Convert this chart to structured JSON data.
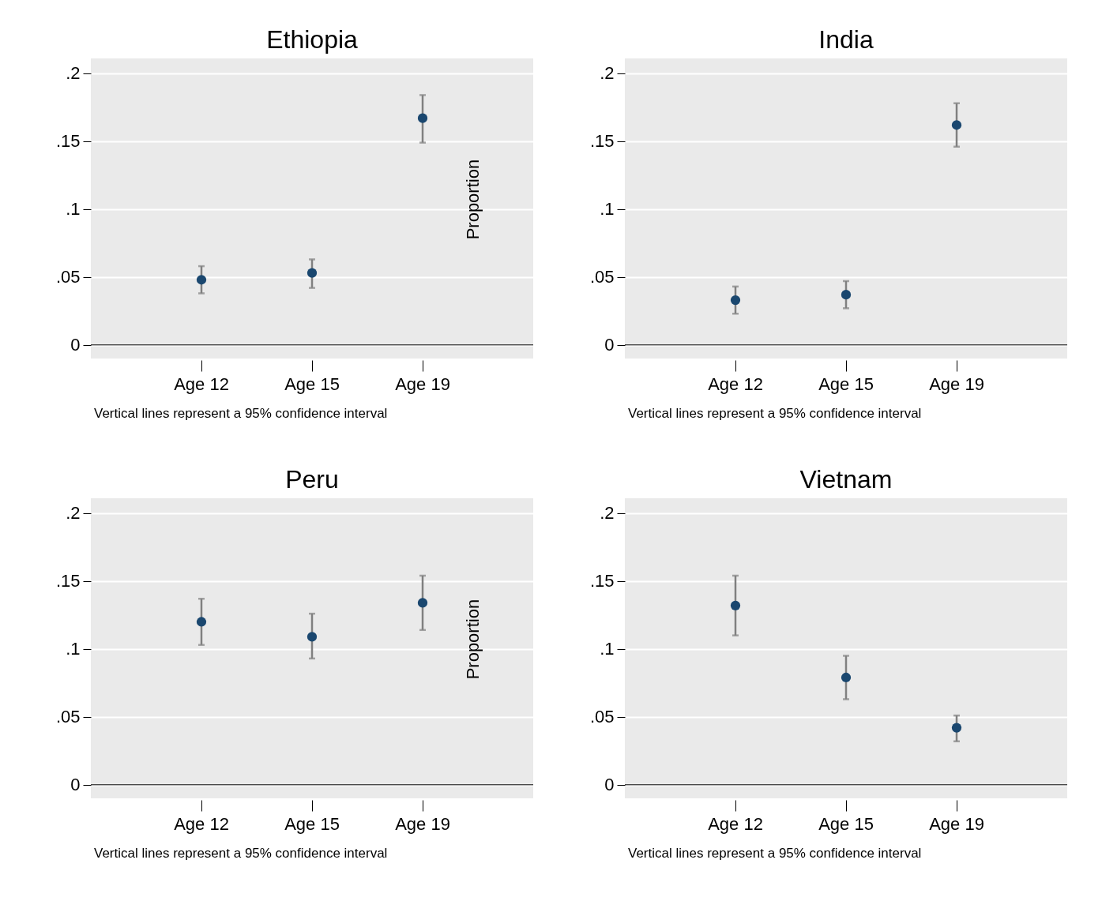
{
  "chart_data": [
    {
      "type": "scatter",
      "title": "Ethiopia",
      "categories": [
        "Age 12",
        "Age 15",
        "Age 19"
      ],
      "values": [
        0.048,
        0.053,
        0.167
      ],
      "errors": [
        [
          0.038,
          0.058
        ],
        [
          0.042,
          0.063
        ],
        [
          0.149,
          0.184
        ]
      ],
      "color": "#1a476f",
      "marker": "circle",
      "ylim": [
        -0.01,
        0.211
      ],
      "yticks": [
        {
          "value": 0,
          "label": "0"
        },
        {
          "value": 0.05,
          "label": ".05"
        },
        {
          "value": 0.1,
          "label": ".1"
        },
        {
          "value": 0.15,
          "label": ".15"
        },
        {
          "value": 0.2,
          "label": ".2"
        }
      ],
      "grid": "y",
      "ref_lines": [
        {
          "axis": "y",
          "value": 0,
          "color": "#000000"
        }
      ],
      "ylabel": "Proportion",
      "annotations": [
        "Vertical lines represent a 95% confidence interval"
      ]
    },
    {
      "type": "scatter",
      "title": "India",
      "categories": [
        "Age 12",
        "Age 15",
        "Age 19"
      ],
      "values": [
        0.033,
        0.037,
        0.162
      ],
      "errors": [
        [
          0.023,
          0.043
        ],
        [
          0.027,
          0.047
        ],
        [
          0.146,
          0.178
        ]
      ],
      "color": "#1a476f",
      "marker": "circle",
      "ylim": [
        -0.01,
        0.211
      ],
      "yticks": [
        {
          "value": 0,
          "label": "0"
        },
        {
          "value": 0.05,
          "label": ".05"
        },
        {
          "value": 0.1,
          "label": ".1"
        },
        {
          "value": 0.15,
          "label": ".15"
        },
        {
          "value": 0.2,
          "label": ".2"
        }
      ],
      "grid": "y",
      "ref_lines": [
        {
          "axis": "y",
          "value": 0,
          "color": "#000000"
        }
      ],
      "annotations": [
        "Vertical lines represent a 95% confidence interval"
      ]
    },
    {
      "type": "scatter",
      "title": "Peru",
      "categories": [
        "Age 12",
        "Age 15",
        "Age 19"
      ],
      "values": [
        0.12,
        0.109,
        0.134
      ],
      "errors": [
        [
          0.103,
          0.137
        ],
        [
          0.093,
          0.126
        ],
        [
          0.114,
          0.154
        ]
      ],
      "color": "#1a476f",
      "marker": "circle",
      "ylim": [
        -0.01,
        0.211
      ],
      "yticks": [
        {
          "value": 0,
          "label": "0"
        },
        {
          "value": 0.05,
          "label": ".05"
        },
        {
          "value": 0.1,
          "label": ".1"
        },
        {
          "value": 0.15,
          "label": ".15"
        },
        {
          "value": 0.2,
          "label": ".2"
        }
      ],
      "grid": "y",
      "ref_lines": [
        {
          "axis": "y",
          "value": 0,
          "color": "#000000"
        }
      ],
      "ylabel": "Proportion",
      "annotations": [
        "Vertical lines represent a 95% confidence interval"
      ]
    },
    {
      "type": "scatter",
      "title": "Vietnam",
      "categories": [
        "Age 12",
        "Age 15",
        "Age 19"
      ],
      "values": [
        0.132,
        0.079,
        0.042
      ],
      "errors": [
        [
          0.11,
          0.154
        ],
        [
          0.063,
          0.095
        ],
        [
          0.032,
          0.051
        ]
      ],
      "color": "#1a476f",
      "marker": "circle",
      "ylim": [
        -0.01,
        0.211
      ],
      "yticks": [
        {
          "value": 0,
          "label": "0"
        },
        {
          "value": 0.05,
          "label": ".05"
        },
        {
          "value": 0.1,
          "label": ".1"
        },
        {
          "value": 0.15,
          "label": ".15"
        },
        {
          "value": 0.2,
          "label": ".2"
        }
      ],
      "grid": "y",
      "ref_lines": [
        {
          "axis": "y",
          "value": 0,
          "color": "#000000"
        }
      ],
      "annotations": [
        "Vertical lines represent a 95% confidence interval"
      ]
    }
  ]
}
